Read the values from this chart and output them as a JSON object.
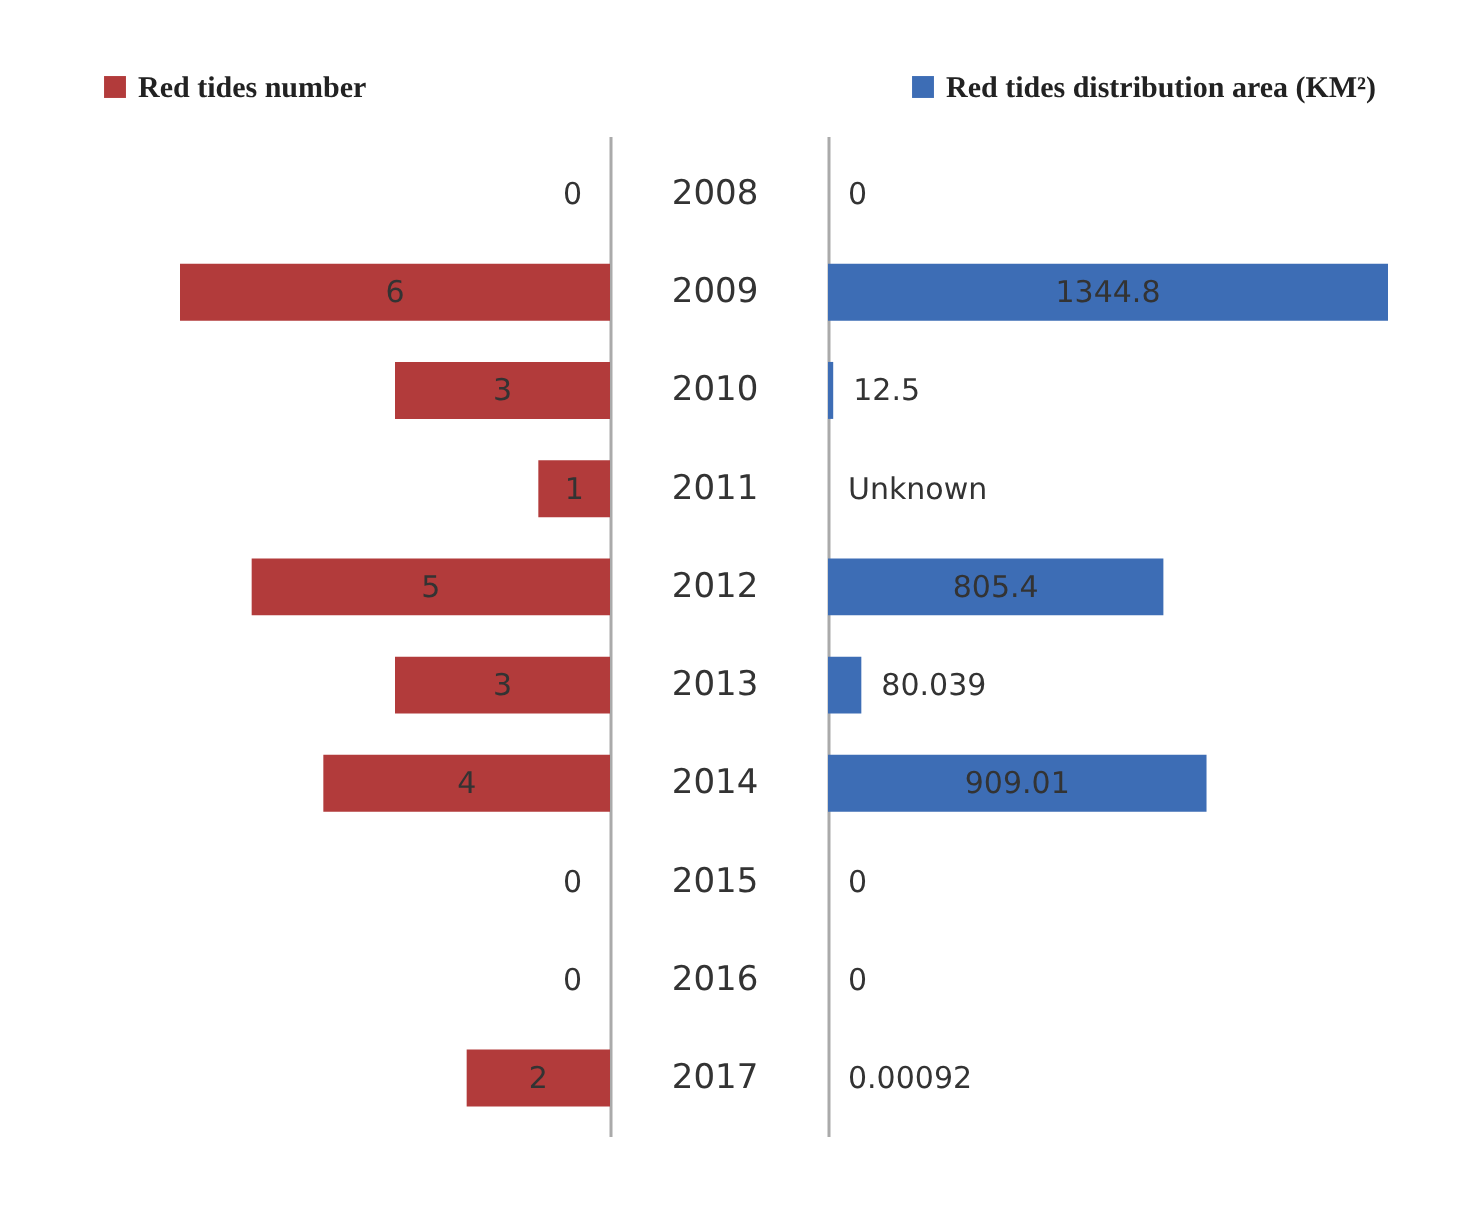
{
  "chart_data": [
    {
      "type": "bar",
      "orientation": "horizontal",
      "categories": [
        "2008",
        "2009",
        "2010",
        "2011",
        "2012",
        "2013",
        "2014",
        "2015",
        "2016",
        "2017"
      ],
      "tick_labels": false,
      "data_labels": true,
      "legend": "top left",
      "grid": false,
      "series": [
        {
          "name": "Red tides number",
          "color": "#b23b3b",
          "values": [
            0,
            6,
            3,
            1,
            5,
            3,
            4,
            0,
            0,
            2
          ]
        }
      ]
    },
    {
      "type": "bar",
      "orientation": "horizontal",
      "categories": [
        "2008",
        "2009",
        "2010",
        "2011",
        "2012",
        "2013",
        "2014",
        "2015",
        "2016",
        "2017"
      ],
      "tick_labels": "y",
      "legend": "top right",
      "grid": false,
      "series": [
        {
          "name": "Red tides distribution area (KM²)",
          "color": "#3d6db5",
          "values": [
            0,
            1344.8,
            12.5,
            null,
            805.4,
            80.039,
            909.01,
            0,
            0,
            0.00092
          ],
          "value_labels": [
            "0",
            "1344.8",
            "12.5",
            "Unknown",
            "805.4",
            "80.039",
            "909.01",
            "0",
            "0",
            "0.00092"
          ]
        }
      ]
    }
  ]
}
